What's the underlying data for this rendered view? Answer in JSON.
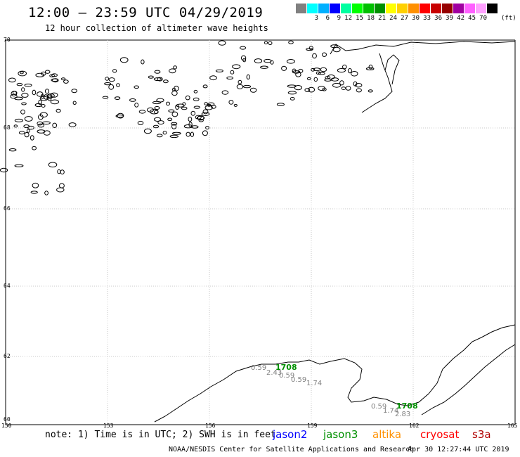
{
  "header": {
    "title": "12:00 – 23:59 UTC 04/29/2019",
    "subtitle": "12 hour collection of altimeter wave heights"
  },
  "colorbar": {
    "colors": [
      "#808080",
      "#00ffff",
      "#00b0ff",
      "#0000ff",
      "#00ffa0",
      "#00ff00",
      "#00c000",
      "#009000",
      "#ffff00",
      "#ffd000",
      "#ff9000",
      "#ff0000",
      "#c80000",
      "#960000",
      "#a000a0",
      "#ff60ff",
      "#ffa0ff",
      "#000000"
    ],
    "labels": [
      "3",
      "6",
      "9",
      "12",
      "15",
      "18",
      "21",
      "24",
      "27",
      "30",
      "33",
      "36",
      "39",
      "42",
      "45",
      "70"
    ],
    "unit": "(ft)"
  },
  "map": {
    "lat_labels": [
      "70",
      "68",
      "66",
      "64",
      "62",
      "60"
    ],
    "lon_labels": [
      "150",
      "153",
      "156",
      "159",
      "162",
      "165"
    ]
  },
  "observations": [
    {
      "track": "1708",
      "labels": [
        "0.59",
        "2.43",
        "0.59",
        "0.59",
        "1.74"
      ]
    },
    {
      "track": "1708",
      "labels": [
        "0.59",
        "1.74",
        "2.83"
      ]
    }
  ],
  "footer": {
    "note": "note: 1) Time is in UTC; 2) SWH is in feet",
    "satellites": [
      {
        "name": "jason2",
        "color": "#0000ff"
      },
      {
        "name": "jason3",
        "color": "#009000"
      },
      {
        "name": "altika",
        "color": "#ff9000"
      },
      {
        "name": "cryosat",
        "color": "#ff0000"
      },
      {
        "name": "s3a",
        "color": "#b00000"
      }
    ],
    "credit": "NOAA/NESDIS Center for Satellite Applications and Research",
    "timestamp": "Apr 30 12:27:44 UTC 2019"
  }
}
